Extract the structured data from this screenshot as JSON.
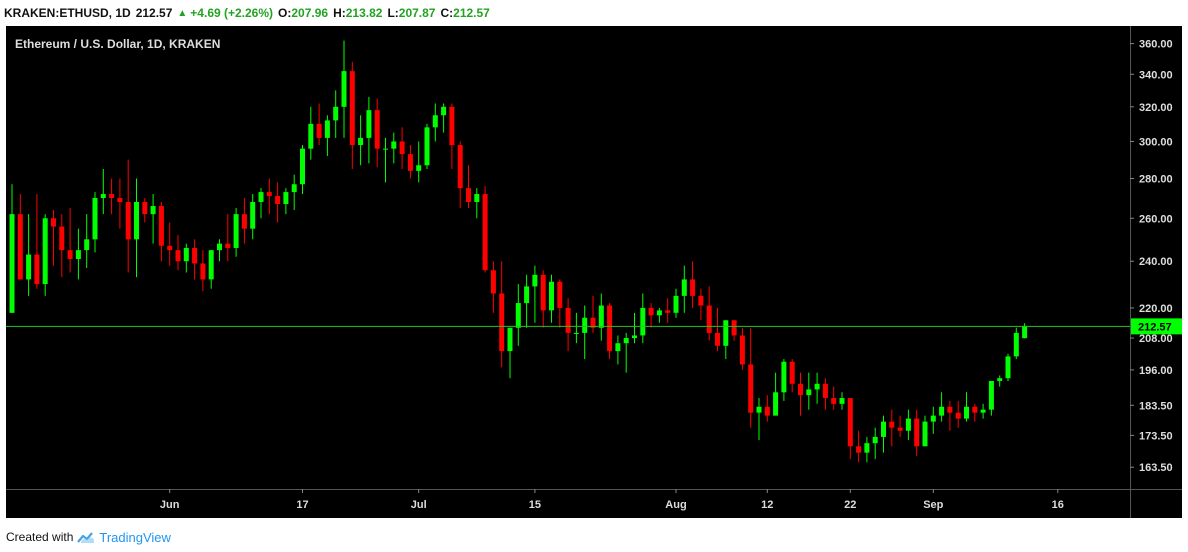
{
  "header": {
    "symbol": "KRAKEN:ETHUSD, 1D",
    "last": "212.57",
    "change": "+4.69 (+2.26%)",
    "open_label": "O:",
    "open": "207.96",
    "high_label": "H:",
    "high": "213.82",
    "low_label": "L:",
    "low": "207.87",
    "close_label": "C:",
    "close": "212.57"
  },
  "chart_data": {
    "type": "candlestick",
    "title": "Ethereum / U.S. Dollar, 1D, KRAKEN",
    "scale": "log",
    "ylim": [
      157,
      372
    ],
    "y_ticks": [
      "360.00",
      "340.00",
      "320.00",
      "300.00",
      "280.00",
      "260.00",
      "240.00",
      "220.00",
      "208.00",
      "196.00",
      "183.50",
      "173.50",
      "163.50"
    ],
    "x_ticks": [
      {
        "label": "Jun",
        "index": 19
      },
      {
        "label": "17",
        "index": 35
      },
      {
        "label": "Jul",
        "index": 49
      },
      {
        "label": "15",
        "index": 63
      },
      {
        "label": "Aug",
        "index": 80
      },
      {
        "label": "12",
        "index": 91
      },
      {
        "label": "22",
        "index": 101
      },
      {
        "label": "Sep",
        "index": 111
      },
      {
        "label": "16",
        "index": 126
      }
    ],
    "last_price": "212.57",
    "colors": {
      "up": "#00ff00",
      "down": "#ff0000",
      "background": "#000000",
      "price_line": "#22c422",
      "axis_text": "#dddddd"
    },
    "candles": [
      [
        218,
        277,
        218,
        262
      ],
      [
        262,
        272,
        232,
        232
      ],
      [
        232,
        262,
        225,
        243
      ],
      [
        243,
        272,
        228,
        230
      ],
      [
        230,
        262,
        225,
        260
      ],
      [
        260,
        264,
        238,
        256
      ],
      [
        256,
        262,
        233,
        245
      ],
      [
        245,
        265,
        235,
        241
      ],
      [
        241,
        255,
        232,
        245
      ],
      [
        245,
        262,
        237,
        250
      ],
      [
        250,
        273,
        244,
        270
      ],
      [
        270,
        285,
        262,
        272
      ],
      [
        272,
        280,
        262,
        270
      ],
      [
        270,
        280,
        255,
        268
      ],
      [
        268,
        290,
        235,
        250
      ],
      [
        250,
        280,
        233,
        268
      ],
      [
        268,
        270,
        258,
        262
      ],
      [
        262,
        272,
        248,
        266
      ],
      [
        266,
        268,
        240,
        247
      ],
      [
        247,
        258,
        238,
        245
      ],
      [
        245,
        252,
        236,
        240
      ],
      [
        240,
        248,
        235,
        246
      ],
      [
        246,
        250,
        232,
        239
      ],
      [
        239,
        245,
        227,
        232
      ],
      [
        232,
        245,
        228,
        245
      ],
      [
        245,
        250,
        240,
        248
      ],
      [
        248,
        262,
        240,
        246
      ],
      [
        246,
        265,
        242,
        262
      ],
      [
        262,
        270,
        248,
        255
      ],
      [
        255,
        272,
        250,
        268
      ],
      [
        268,
        275,
        260,
        273
      ],
      [
        273,
        280,
        262,
        271
      ],
      [
        271,
        278,
        258,
        267
      ],
      [
        267,
        275,
        262,
        273
      ],
      [
        273,
        282,
        264,
        277
      ],
      [
        277,
        298,
        272,
        296
      ],
      [
        296,
        320,
        290,
        310
      ],
      [
        310,
        322,
        298,
        302
      ],
      [
        302,
        315,
        292,
        312
      ],
      [
        312,
        330,
        302,
        320
      ],
      [
        320,
        362,
        302,
        342
      ],
      [
        342,
        348,
        285,
        298
      ],
      [
        298,
        315,
        287,
        302
      ],
      [
        302,
        326,
        288,
        318
      ],
      [
        318,
        325,
        286,
        296
      ],
      [
        296,
        302,
        278,
        296
      ],
      [
        296,
        305,
        288,
        300
      ],
      [
        300,
        308,
        285,
        293
      ],
      [
        293,
        298,
        280,
        284
      ],
      [
        284,
        300,
        278,
        287
      ],
      [
        287,
        310,
        285,
        308
      ],
      [
        308,
        322,
        300,
        315
      ],
      [
        315,
        322,
        305,
        320
      ],
      [
        320,
        322,
        285,
        298
      ],
      [
        298,
        300,
        265,
        275
      ],
      [
        275,
        287,
        265,
        268
      ],
      [
        268,
        275,
        260,
        272
      ],
      [
        272,
        276,
        235,
        236
      ],
      [
        236,
        240,
        218,
        226
      ],
      [
        226,
        240,
        197,
        203
      ],
      [
        203,
        212,
        193,
        212
      ],
      [
        212,
        230,
        205,
        222
      ],
      [
        222,
        234,
        212,
        229
      ],
      [
        229,
        238,
        214,
        234
      ],
      [
        234,
        236,
        212,
        219
      ],
      [
        219,
        234,
        214,
        231
      ],
      [
        231,
        232,
        212,
        220
      ],
      [
        220,
        224,
        203,
        210
      ],
      [
        210,
        218,
        206,
        210
      ],
      [
        210,
        221,
        200,
        216
      ],
      [
        216,
        225,
        210,
        212
      ],
      [
        212,
        226,
        207,
        221
      ],
      [
        221,
        222,
        200,
        203
      ],
      [
        203,
        209,
        198,
        206
      ],
      [
        206,
        210,
        195,
        208
      ],
      [
        208,
        218,
        206,
        209
      ],
      [
        209,
        226,
        206,
        220
      ],
      [
        220,
        222,
        212,
        217
      ],
      [
        217,
        220,
        214,
        219
      ],
      [
        219,
        224,
        214,
        218
      ],
      [
        218,
        228,
        216,
        225
      ],
      [
        225,
        238,
        218,
        232
      ],
      [
        232,
        240,
        220,
        225
      ],
      [
        225,
        228,
        215,
        221
      ],
      [
        221,
        229,
        207,
        210
      ],
      [
        210,
        220,
        203,
        205
      ],
      [
        205,
        215,
        200,
        215
      ],
      [
        215,
        215,
        207,
        209
      ],
      [
        209,
        212,
        196,
        198
      ],
      [
        198,
        212,
        176,
        181
      ],
      [
        181,
        186,
        172,
        183
      ],
      [
        183,
        187,
        178,
        180
      ],
      [
        180,
        195,
        180,
        188
      ],
      [
        188,
        200,
        185,
        199
      ],
      [
        199,
        200,
        188,
        191
      ],
      [
        191,
        195,
        180,
        187
      ],
      [
        187,
        195,
        182,
        189
      ],
      [
        189,
        195,
        184,
        191
      ],
      [
        191,
        193,
        182,
        186
      ],
      [
        186,
        190,
        182,
        184
      ],
      [
        184,
        188,
        182,
        186
      ],
      [
        186,
        186,
        166,
        170
      ],
      [
        170,
        175,
        165,
        168
      ],
      [
        168,
        173,
        165,
        171
      ],
      [
        171,
        176,
        166,
        173
      ],
      [
        173,
        180,
        168,
        178
      ],
      [
        178,
        182,
        170,
        176
      ],
      [
        176,
        180,
        173,
        175
      ],
      [
        175,
        182,
        172,
        179
      ],
      [
        179,
        182,
        167,
        170
      ],
      [
        170,
        180,
        170,
        178
      ],
      [
        178,
        183,
        174,
        180
      ],
      [
        180,
        188,
        178,
        183
      ],
      [
        183,
        185,
        175,
        181
      ],
      [
        181,
        185,
        176,
        179
      ],
      [
        179,
        188,
        178,
        183
      ],
      [
        183,
        184,
        178,
        181
      ],
      [
        181,
        184,
        179,
        182
      ],
      [
        182,
        192,
        180,
        192
      ],
      [
        192,
        194,
        190,
        193
      ],
      [
        193,
        202,
        192,
        201
      ],
      [
        201,
        212,
        200,
        210
      ],
      [
        207.96,
        213.82,
        207.87,
        212.57
      ]
    ]
  },
  "footer": {
    "created_with": "Created with",
    "brand": "TradingView"
  }
}
